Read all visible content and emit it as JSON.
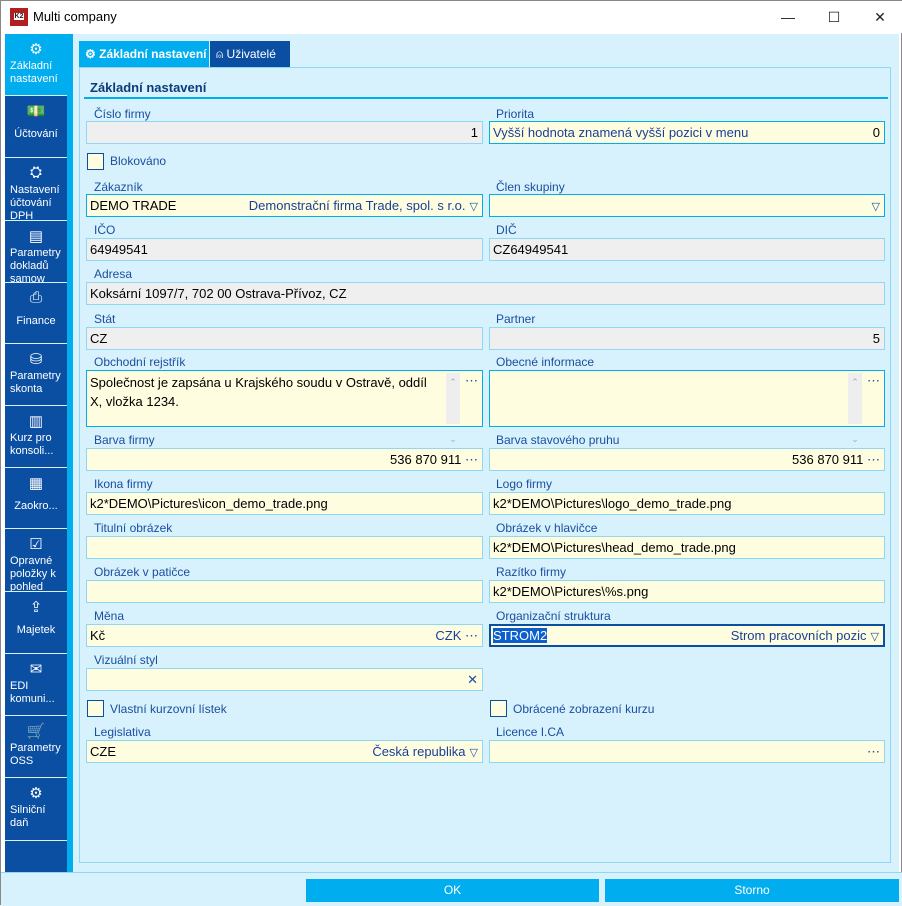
{
  "window": {
    "title": "Multi company",
    "logo_text": "K2",
    "minimize": "—",
    "maximize": "☐",
    "close": "✕"
  },
  "sidebar": {
    "items": [
      {
        "label": "Základní nastavení",
        "icon": "gear-icon",
        "glyph": "⚙"
      },
      {
        "label": "Účtování",
        "icon": "money-icon",
        "glyph": "💵"
      },
      {
        "label": "Nastavení účtování DPH",
        "icon": "tax-settings-icon",
        "glyph": "⛭"
      },
      {
        "label": "Parametry dokladů samow",
        "icon": "document-icon",
        "glyph": "▤"
      },
      {
        "label": "Finance",
        "icon": "cash-register-icon",
        "glyph": "⎙"
      },
      {
        "label": "Parametry skonta",
        "icon": "coins-icon",
        "glyph": "⛁"
      },
      {
        "label": "Kurz pro konsoli...",
        "icon": "report-icon",
        "glyph": "▥"
      },
      {
        "label": "Zaokro...",
        "icon": "calculator-icon",
        "glyph": "▦"
      },
      {
        "label": "Opravné položky k pohled",
        "icon": "checked-document-icon",
        "glyph": "☑"
      },
      {
        "label": "Majetek",
        "icon": "asset-icon",
        "glyph": "⇪"
      },
      {
        "label": "EDI komuni...",
        "icon": "mail-settings-icon",
        "glyph": "✉"
      },
      {
        "label": "Parametry OSS",
        "icon": "cart-icon",
        "glyph": "🛒"
      },
      {
        "label": "Silniční daň",
        "icon": "document-settings-icon",
        "glyph": "⚙"
      }
    ]
  },
  "tabs": [
    {
      "label": "Základní nastavení",
      "icon": "gear-icon",
      "glyph": "⚙"
    },
    {
      "label": "Uživatelé",
      "icon": "users-icon",
      "glyph": "⍝"
    }
  ],
  "section": {
    "title": "Základní nastavení"
  },
  "fields": {
    "cislo_firmy": {
      "label": "Číslo firmy",
      "value": "1"
    },
    "priorita": {
      "label": "Priorita",
      "hint": "Vyšší hodnota znamená vyšší pozici v menu",
      "value": "0"
    },
    "blokovano": {
      "label": "Blokováno",
      "checked": false
    },
    "zakaznik": {
      "label": "Zákazník",
      "value": "DEMO TRADE",
      "description": "Demonstrační firma Trade, spol. s r.o."
    },
    "clen_skupiny": {
      "label": "Člen skupiny",
      "value": ""
    },
    "ico": {
      "label": "IČO",
      "value": "64949541"
    },
    "dic": {
      "label": "DIČ",
      "value": "CZ64949541"
    },
    "adresa": {
      "label": "Adresa",
      "value": "Koksární 1097/7, 702 00  Ostrava-Přívoz, CZ"
    },
    "stat": {
      "label": "Stát",
      "value": "CZ"
    },
    "partner": {
      "label": "Partner",
      "value": "5"
    },
    "obchodni_rejstrik": {
      "label": "Obchodní rejstřík",
      "value": "Společnost je zapsána u Krajského soudu v Ostravě, oddíl X, vložka 1234."
    },
    "obecne_informace": {
      "label": "Obecné informace",
      "value": ""
    },
    "barva_firmy": {
      "label": "Barva firmy",
      "value": "536 870 911"
    },
    "barva_stavoveho_pruhu": {
      "label": "Barva stavového pruhu",
      "value": "536 870 911"
    },
    "ikona_firmy": {
      "label": "Ikona firmy",
      "value": "k2*DEMO\\Pictures\\icon_demo_trade.png"
    },
    "logo_firmy": {
      "label": "Logo firmy",
      "value": "k2*DEMO\\Pictures\\logo_demo_trade.png"
    },
    "titulni_obrazek": {
      "label": "Titulní obrázek",
      "value": ""
    },
    "obrazek_v_hlavicce": {
      "label": "Obrázek v hlavičce",
      "value": "k2*DEMO\\Pictures\\head_demo_trade.png"
    },
    "obrazek_v_paticce": {
      "label": "Obrázek v patičce",
      "value": ""
    },
    "razitko_firmy": {
      "label": "Razítko firmy",
      "value": "k2*DEMO\\Pictures\\%s.png"
    },
    "mena": {
      "label": "Měna",
      "value": "Kč",
      "code": "CZK"
    },
    "organizacni_struktura": {
      "label": "Organizační struktura",
      "value": "STROM2",
      "description": "Strom pracovních pozic"
    },
    "vizualni_styl": {
      "label": "Vizuální styl",
      "value": ""
    },
    "vlastni_kurzovni_listek": {
      "label": "Vlastní kurzovní lístek",
      "checked": false
    },
    "obracene_zobrazeni_kurzu": {
      "label": "Obrácené zobrazení kurzu",
      "checked": false
    },
    "legislativa": {
      "label": "Legislativa",
      "value": "CZE",
      "description": "Česká republika"
    },
    "licence_ica": {
      "label": "Licence I.CA",
      "value": ""
    }
  },
  "buttons": {
    "ok": "OK",
    "storno": "Storno"
  },
  "colors": {
    "sidebar": "#0b4fa3",
    "accent": "#00adee",
    "panel": "#d8f2fd",
    "input": "#fffde0"
  }
}
